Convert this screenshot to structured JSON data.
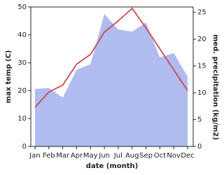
{
  "chart_data": {
    "type": "line_area",
    "x_label": "date (month)",
    "y_label": "max temp (C)",
    "y2_label": "med. precipitation (kg/m2)",
    "categories": [
      "Jan",
      "Feb",
      "Mar",
      "Apr",
      "May",
      "Jun",
      "Jul",
      "Aug",
      "Sep",
      "Oct",
      "Nov",
      "Dec"
    ],
    "series": [
      {
        "name": "max temp",
        "color": "#cc4c50",
        "values": [
          14,
          19.5,
          22,
          29.5,
          33,
          41,
          45,
          49.5,
          42.5,
          35,
          27.5,
          20
        ]
      },
      {
        "name": "med. precipitation",
        "color": "#b0bbf0",
        "axis": "y2",
        "values": [
          10.7,
          10.9,
          9.1,
          14.3,
          15.3,
          24.7,
          21.8,
          21.4,
          23.1,
          16.6,
          17.4,
          13
        ]
      }
    ],
    "ylim": [
      0,
      50
    ],
    "yticks": [
      0,
      10,
      20,
      30,
      40,
      50
    ],
    "y2lim": [
      0,
      26
    ],
    "y2ticks": [
      0,
      5,
      10,
      15,
      20,
      25
    ]
  }
}
